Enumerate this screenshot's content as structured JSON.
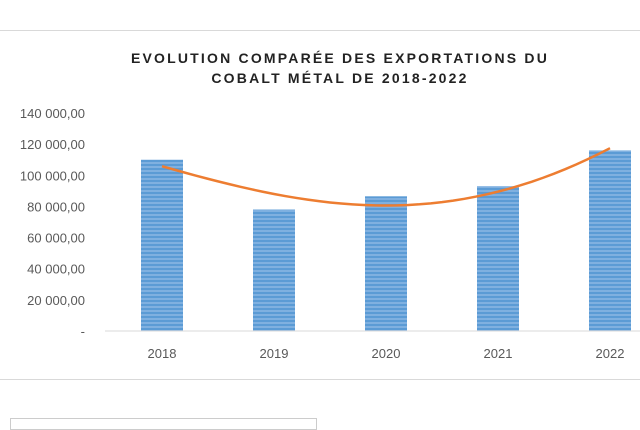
{
  "chart_data": {
    "type": "bar",
    "title": "EVOLUTION COMPARÉE DES EXPORTATIONS DU COBALT MÉTAL DE 2018-2022",
    "title_lines": [
      "EVOLUTION COMPARÉE DES EXPORTATIONS DU",
      "COBALT MÉTAL DE 2018-2022"
    ],
    "categories": [
      "2018",
      "2019",
      "2020",
      "2021",
      "2022"
    ],
    "values": [
      110000,
      78000,
      86500,
      93000,
      116000
    ],
    "trendline": {
      "type": "polynomial",
      "values": [
        105800,
        88000,
        80600,
        89500,
        117400
      ],
      "color": "#ed7d31"
    },
    "bar_color": "#5b9bd5",
    "ylim": [
      0,
      140000
    ],
    "yticks": [
      0,
      20000,
      40000,
      60000,
      80000,
      100000,
      120000,
      140000
    ],
    "ytick_labels": [
      "-",
      "20 000,00",
      "40 000,00",
      "60 000,00",
      "80 000,00",
      "100 000,00",
      "120 000,00",
      "140 000,00"
    ],
    "grid": false,
    "xlabel": "",
    "ylabel": ""
  }
}
